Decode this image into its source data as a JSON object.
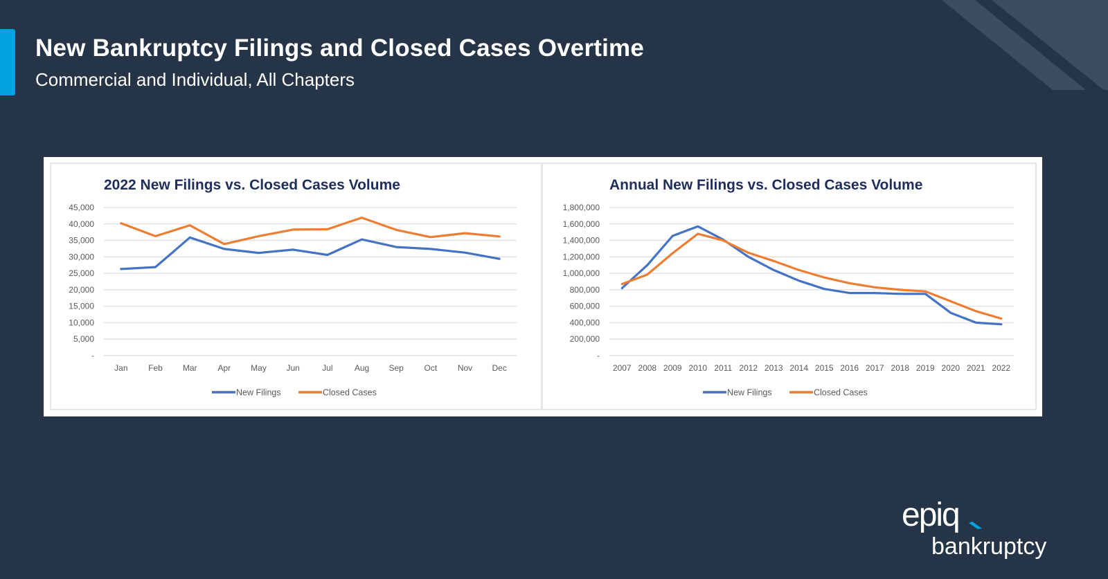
{
  "header": {
    "title": "New Bankruptcy Filings and Closed Cases Overtime",
    "subtitle": "Commercial and Individual, All Chapters"
  },
  "colors": {
    "background": "#253547",
    "accent": "#00a3e0",
    "stripe": "#3b4d5f",
    "new_filings": "#4472c4",
    "closed_cases": "#ed7d31",
    "chart_title": "#1f2d5a"
  },
  "logo": {
    "brand": "epiq",
    "product": "bankruptcy"
  },
  "chart_data": [
    {
      "type": "line",
      "title": "2022 New Filings vs. Closed Cases Volume",
      "xlabel": "",
      "ylabel": "",
      "categories": [
        "Jan",
        "Feb",
        "Mar",
        "Apr",
        "May",
        "Jun",
        "Jul",
        "Aug",
        "Sep",
        "Oct",
        "Nov",
        "Dec"
      ],
      "ylim": [
        0,
        45000
      ],
      "yticks": [
        0,
        5000,
        10000,
        15000,
        20000,
        25000,
        30000,
        35000,
        40000,
        45000
      ],
      "ytick_labels": [
        "-",
        "5,000",
        "10,000",
        "15,000",
        "20,000",
        "25,000",
        "30,000",
        "35,000",
        "40,000",
        "45,000"
      ],
      "grid": true,
      "legend": "bottom",
      "series": [
        {
          "name": "New Filings",
          "color": "#4472c4",
          "values": [
            26300,
            26900,
            35900,
            32400,
            31200,
            32200,
            30600,
            35300,
            33000,
            32400,
            31300,
            29400
          ]
        },
        {
          "name": "Closed Cases",
          "color": "#ed7d31",
          "values": [
            40200,
            36300,
            39600,
            33900,
            36300,
            38300,
            38400,
            41900,
            38200,
            36000,
            37200,
            36200
          ]
        }
      ]
    },
    {
      "type": "line",
      "title": "Annual New Filings vs. Closed Cases Volume",
      "xlabel": "",
      "ylabel": "",
      "categories": [
        "2007",
        "2008",
        "2009",
        "2010",
        "2011",
        "2012",
        "2013",
        "2014",
        "2015",
        "2016",
        "2017",
        "2018",
        "2019",
        "2020",
        "2021",
        "2022"
      ],
      "ylim": [
        0,
        1800000
      ],
      "yticks": [
        0,
        200000,
        400000,
        600000,
        800000,
        1000000,
        1200000,
        1400000,
        1600000,
        1800000
      ],
      "ytick_labels": [
        "-",
        "200,000",
        "400,000",
        "600,000",
        "800,000",
        "1,000,000",
        "1,200,000",
        "1,400,000",
        "1,600,000",
        "1,800,000"
      ],
      "grid": true,
      "legend": "bottom",
      "series": [
        {
          "name": "New Filings",
          "color": "#4472c4",
          "values": [
            820000,
            1100000,
            1455000,
            1570000,
            1410000,
            1200000,
            1040000,
            910000,
            810000,
            760000,
            760000,
            750000,
            750000,
            520000,
            400000,
            380000
          ]
        },
        {
          "name": "Closed Cases",
          "color": "#ed7d31",
          "values": [
            870000,
            985000,
            1245000,
            1480000,
            1400000,
            1250000,
            1150000,
            1040000,
            950000,
            880000,
            830000,
            800000,
            780000,
            660000,
            540000,
            450000
          ]
        }
      ]
    }
  ]
}
